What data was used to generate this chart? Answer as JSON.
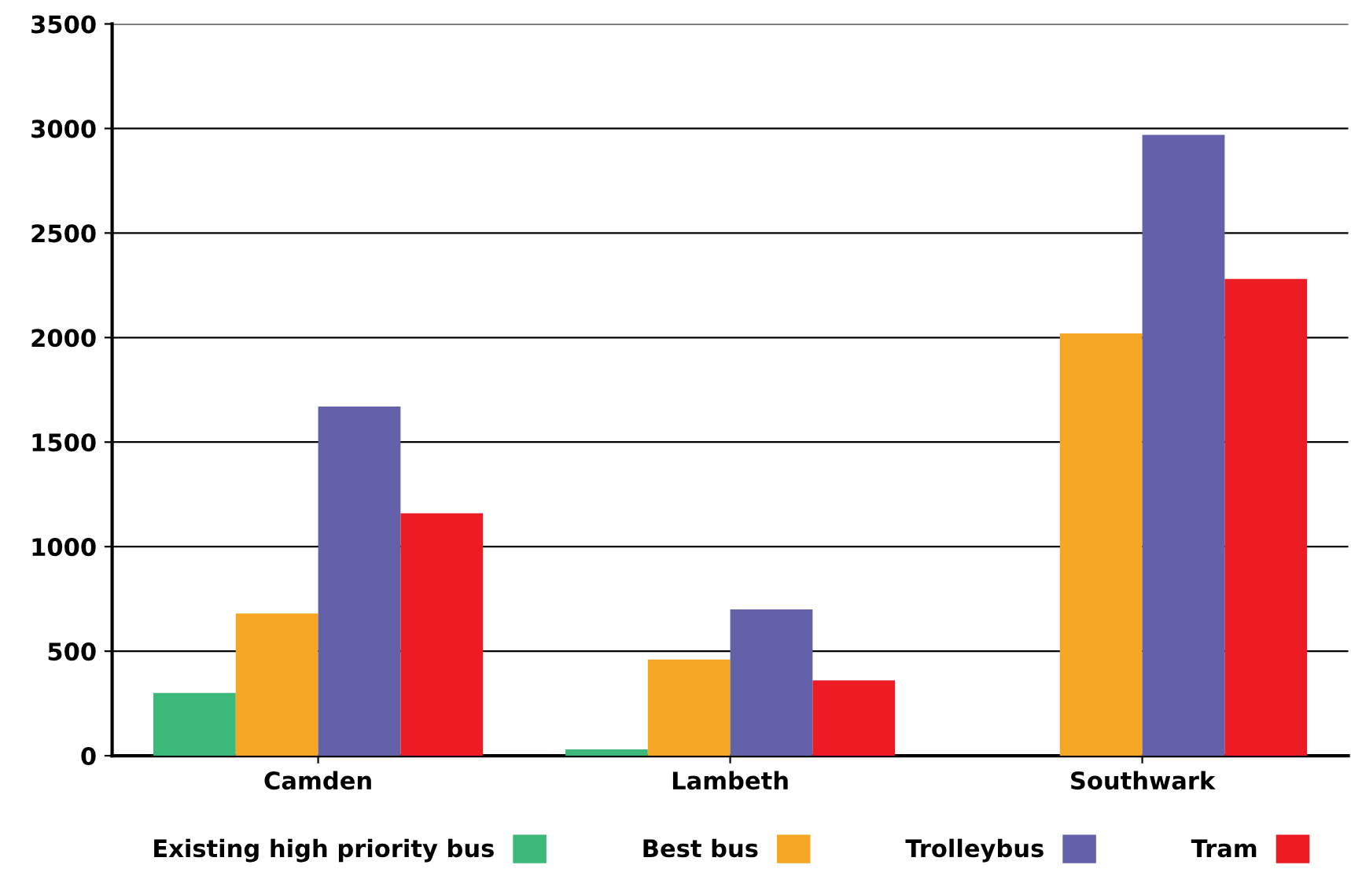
{
  "chart_data": {
    "type": "bar",
    "categories": [
      "Camden",
      "Lambeth",
      "Southwark"
    ],
    "series": [
      {
        "name": "Existing high priority bus",
        "color": "#3cb878",
        "values": [
          300,
          30,
          null
        ]
      },
      {
        "name": "Best bus",
        "color": "#f5a623",
        "values": [
          680,
          460,
          2020
        ]
      },
      {
        "name": "Trolleybus",
        "color": "#6461ab",
        "values": [
          1670,
          700,
          2970
        ]
      },
      {
        "name": "Tram",
        "color": "#ed1c24",
        "values": [
          1160,
          360,
          2280
        ]
      }
    ],
    "ylim": [
      0,
      3500
    ],
    "yticks": [
      0,
      500,
      1000,
      1500,
      2000,
      2500,
      3000,
      3500
    ],
    "grid": "y",
    "legend": "bottom"
  }
}
